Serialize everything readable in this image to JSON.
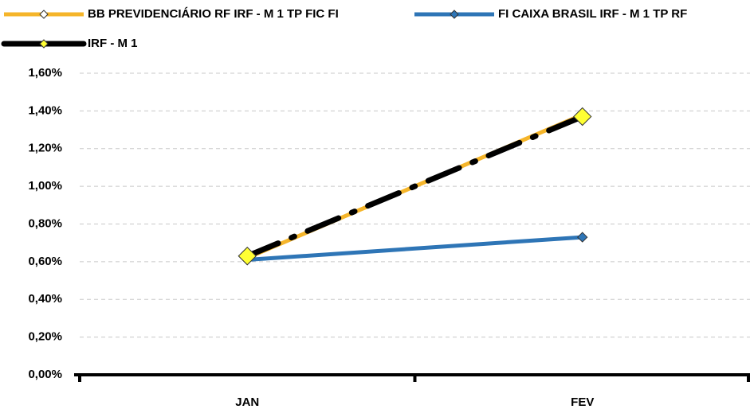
{
  "chart_data": {
    "type": "line",
    "categories": [
      "JAN",
      "FEV"
    ],
    "series": [
      {
        "name": "BB PREVIDENCIÁRIO RF IRF - M 1 TP FIC FI",
        "color": "#f5b52a",
        "marker_color": "#ffffff",
        "values": [
          0.62,
          1.38
        ]
      },
      {
        "name": "FI CAIXA BRASIL IRF - M 1 TP RF",
        "color": "#2e75b6",
        "marker_color": "#2e75b6",
        "values": [
          0.61,
          0.73
        ]
      },
      {
        "name": "IRF - M 1",
        "color": "#000000",
        "marker_color": "#ffff33",
        "dashed": true,
        "values": [
          0.63,
          1.37
        ]
      }
    ],
    "ylim": [
      0,
      1.6
    ],
    "yticks": [
      {
        "value": 0,
        "label": "0,00%"
      },
      {
        "value": 0.2,
        "label": "0,20%"
      },
      {
        "value": 0.4,
        "label": "0,40%"
      },
      {
        "value": 0.6,
        "label": "0,60%"
      },
      {
        "value": 0.8,
        "label": "0,80%"
      },
      {
        "value": 1.0,
        "label": "1,00%"
      },
      {
        "value": 1.2,
        "label": "1,20%"
      },
      {
        "value": 1.4,
        "label": "1,40%"
      },
      {
        "value": 1.6,
        "label": "1,60%"
      }
    ],
    "grid": true
  }
}
